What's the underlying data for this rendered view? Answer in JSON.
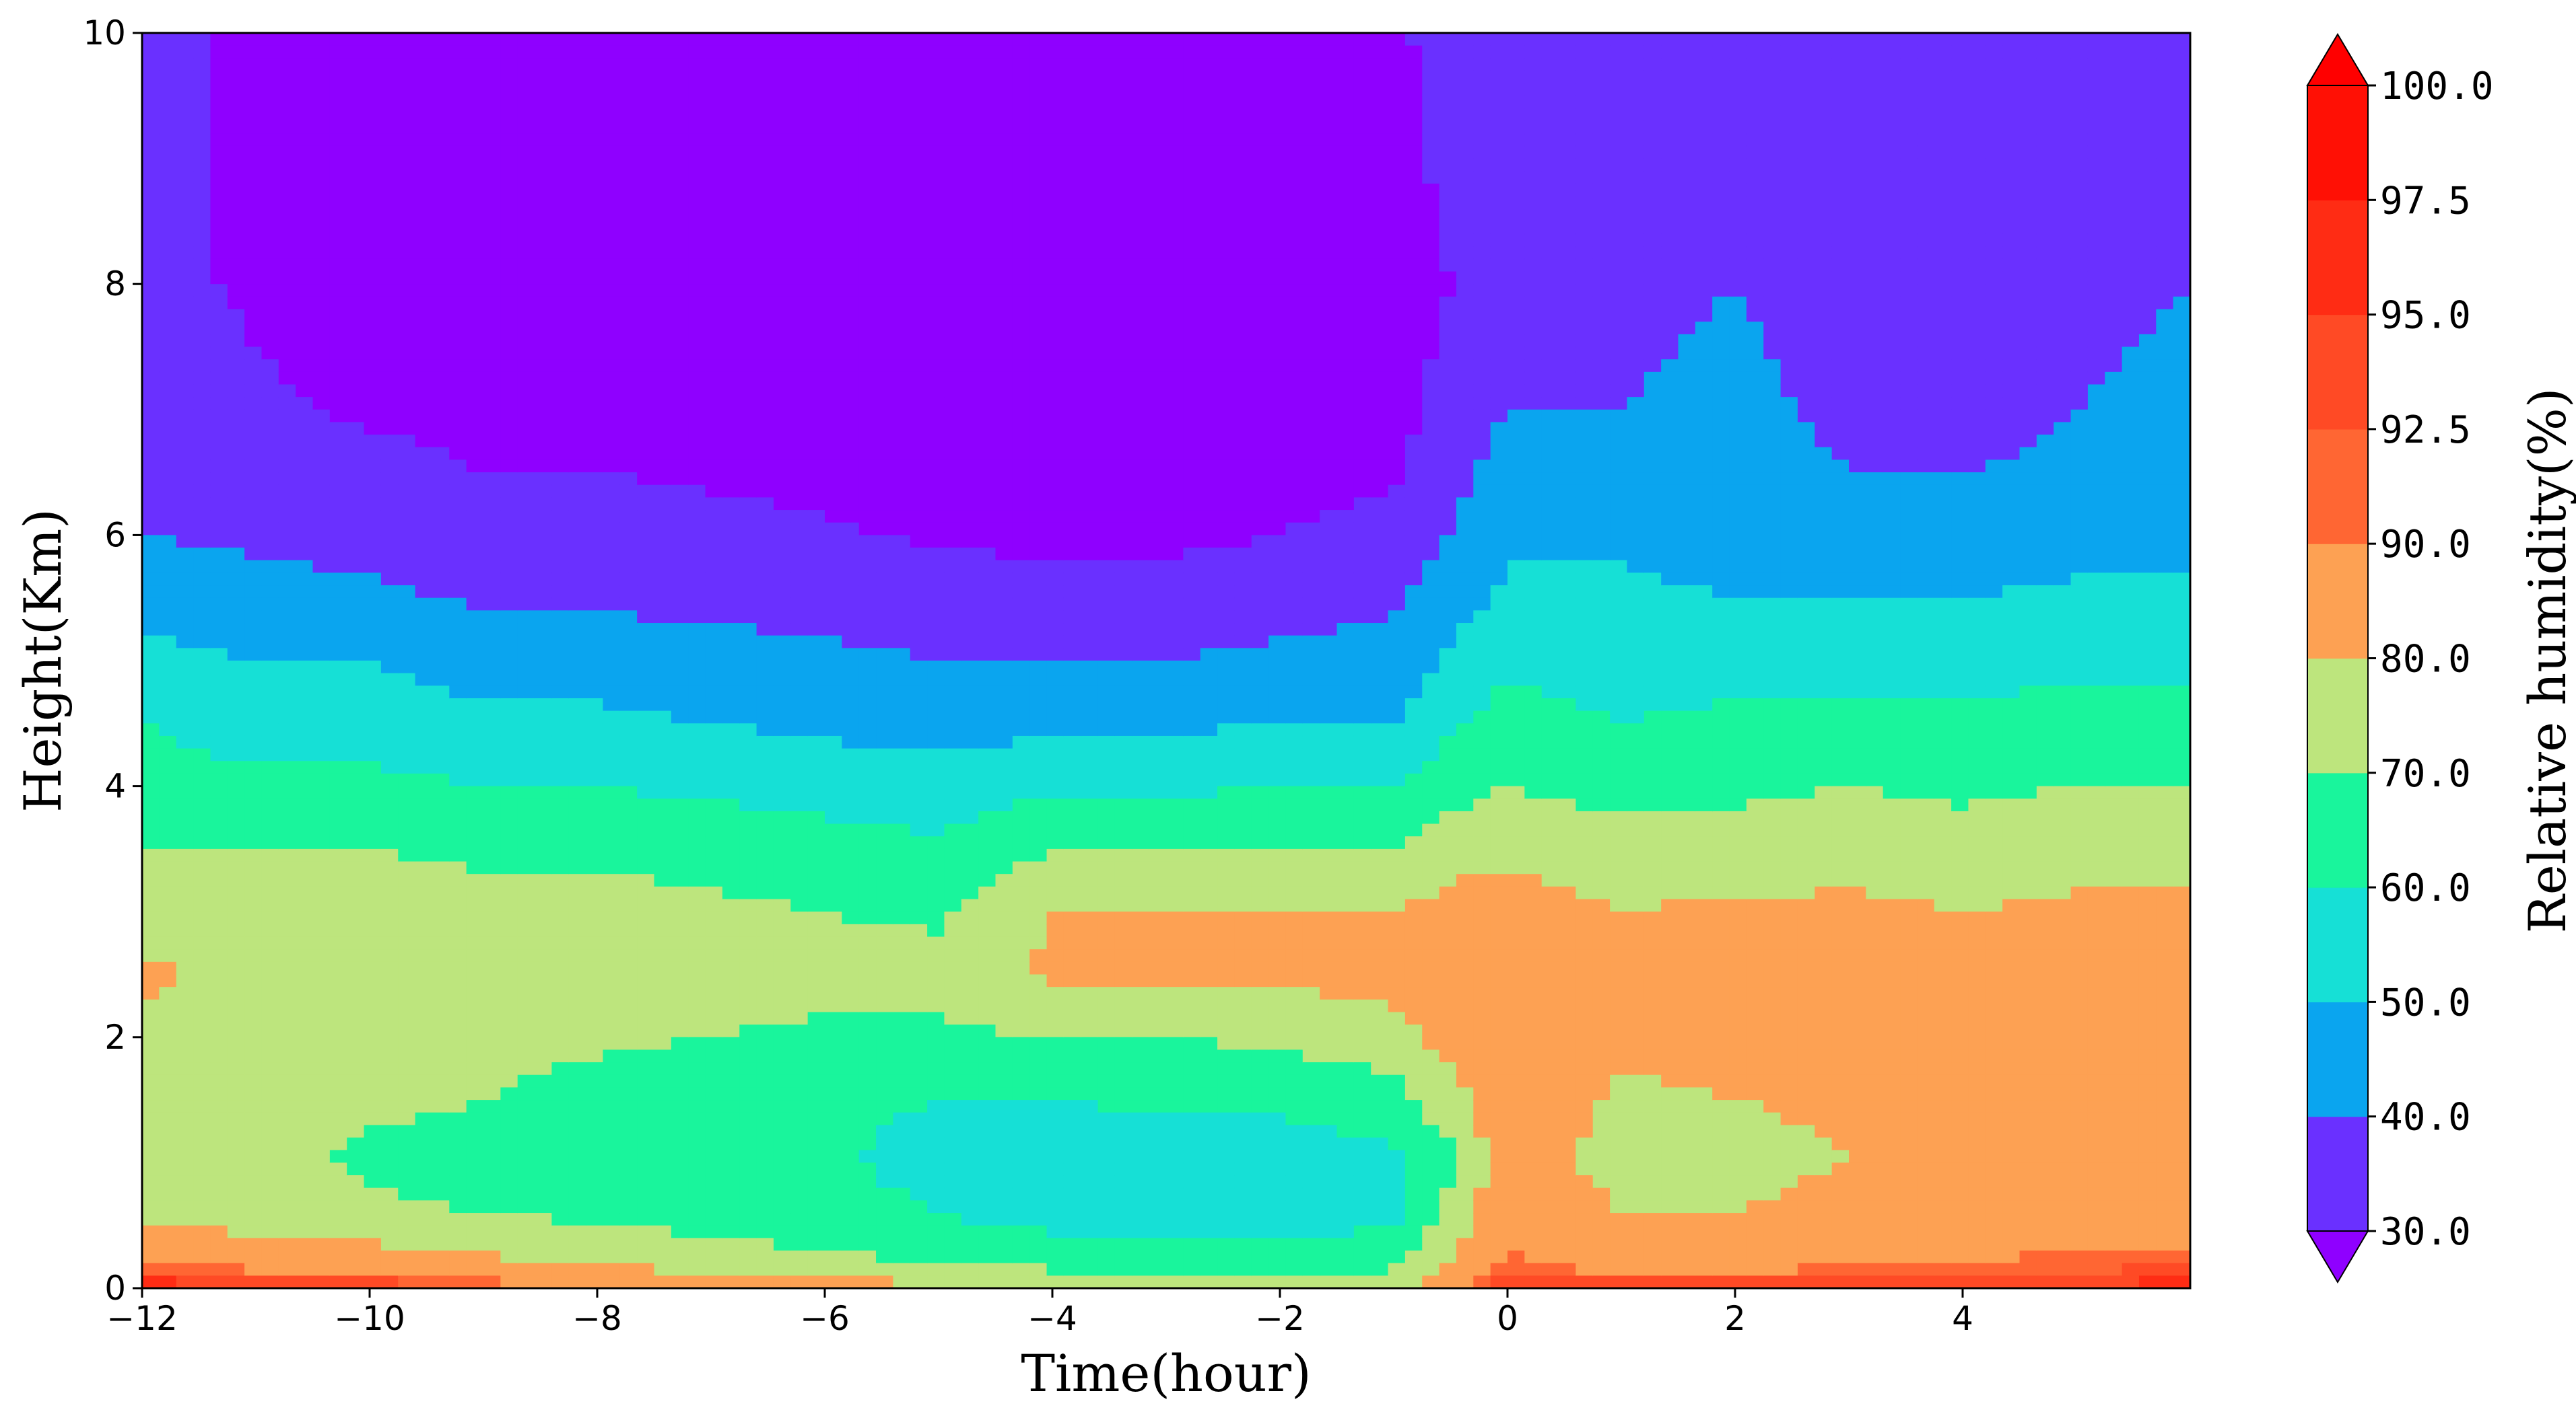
{
  "chart_data": {
    "type": "heatmap",
    "title": "",
    "xlabel": "Time(hour)",
    "ylabel": "Height(Km)",
    "colorbar_label": "Relative humidity(%)",
    "xlim": [
      -12,
      6
    ],
    "ylim": [
      0,
      10
    ],
    "x_ticks": [
      -12,
      -10,
      -8,
      -6,
      -4,
      -2,
      0,
      2,
      4
    ],
    "x_tick_labels": [
      "−12",
      "−10",
      "−8",
      "−6",
      "−4",
      "−2",
      "0",
      "2",
      "4"
    ],
    "y_ticks": [
      0,
      2,
      4,
      6,
      8,
      10
    ],
    "y_tick_labels": [
      "0",
      "2",
      "4",
      "6",
      "8",
      "10"
    ],
    "colorbar": {
      "levels": [
        30,
        40,
        50,
        60,
        70,
        80,
        90,
        92.5,
        95,
        97.5,
        100
      ],
      "labels": [
        "30.0",
        "40.0",
        "50.0",
        "60.0",
        "70.0",
        "80.0",
        "90.0",
        "92.5",
        "95.0",
        "97.5",
        "100.0"
      ],
      "colors": [
        "#6a30ff",
        "#0aa5ef",
        "#16e0d6",
        "#19f59c",
        "#bde57d",
        "#fda153",
        "#ff6633",
        "#ff4a25",
        "#ff2c14",
        "#ff1005"
      ],
      "under_color": "#8f00ff",
      "over_color": "#ff0000",
      "extend": "both"
    },
    "grid": false,
    "x_hours": [
      -12,
      -11,
      -10,
      -9,
      -8,
      -7,
      -6,
      -5,
      -4,
      -3,
      -2,
      -1,
      -0.5,
      0,
      1,
      2,
      3,
      4,
      5,
      6
    ],
    "height_km": [
      0,
      0.1,
      0.3,
      0.6,
      1,
      1.5,
      2,
      2.5,
      3,
      3.5,
      4,
      4.5,
      5,
      5.5,
      6,
      6.5,
      7,
      8,
      9,
      10
    ],
    "relative_humidity": [
      [
        97,
        94,
        85,
        78,
        75,
        75,
        78,
        82,
        76,
        70,
        64,
        60,
        53,
        46,
        40,
        36,
        34,
        32,
        33,
        34
      ],
      [
        96,
        92,
        83,
        76,
        74,
        72,
        74,
        76,
        74,
        70,
        62,
        56,
        50,
        44,
        38,
        34,
        31,
        29,
        28,
        28
      ],
      [
        95,
        91,
        82,
        72,
        68,
        72,
        74,
        76,
        74,
        70,
        62,
        56,
        50,
        42,
        36,
        32,
        29,
        27,
        27,
        27
      ],
      [
        93,
        88,
        78,
        70,
        66,
        70,
        73,
        76,
        74,
        68,
        60,
        52,
        46,
        39,
        33,
        30,
        28,
        27,
        27,
        27
      ],
      [
        90,
        84,
        76,
        68,
        64,
        66,
        72,
        76,
        74,
        68,
        60,
        52,
        46,
        38,
        33,
        30,
        28,
        27,
        27,
        27
      ],
      [
        88,
        80,
        72,
        66,
        62,
        64,
        70,
        76,
        72,
        66,
        58,
        50,
        44,
        37,
        32,
        29,
        27,
        27,
        26,
        26
      ],
      [
        86,
        78,
        70,
        64,
        62,
        62,
        68,
        74,
        70,
        64,
        56,
        48,
        42,
        36,
        31,
        28,
        27,
        26,
        26,
        26
      ],
      [
        84,
        74,
        66,
        60,
        56,
        60,
        68,
        74,
        68,
        62,
        54,
        46,
        40,
        34,
        29,
        27,
        26,
        26,
        26,
        26
      ],
      [
        82,
        72,
        64,
        56,
        54,
        60,
        70,
        82,
        80,
        70,
        58,
        48,
        40,
        33,
        28,
        26,
        26,
        26,
        26,
        26
      ],
      [
        80,
        70,
        62,
        55,
        54,
        62,
        70,
        82,
        80,
        70,
        58,
        48,
        40,
        33,
        28,
        26,
        26,
        26,
        26,
        26
      ],
      [
        80,
        70,
        62,
        55,
        54,
        62,
        72,
        82,
        80,
        70,
        60,
        50,
        42,
        36,
        30,
        27,
        26,
        26,
        26,
        26
      ],
      [
        82,
        72,
        64,
        58,
        58,
        66,
        76,
        84,
        80,
        70,
        60,
        50,
        44,
        38,
        33,
        29,
        27,
        26,
        27,
        28
      ],
      [
        88,
        82,
        80,
        74,
        68,
        76,
        84,
        86,
        84,
        76,
        66,
        58,
        52,
        46,
        40,
        36,
        33,
        30,
        32,
        34
      ],
      [
        97,
        93,
        90,
        88,
        86,
        88,
        90,
        86,
        84,
        78,
        70,
        64,
        58,
        52,
        48,
        44,
        40,
        36,
        38,
        40
      ],
      [
        96,
        90,
        84,
        80,
        76,
        78,
        82,
        84,
        80,
        74,
        66,
        60,
        56,
        52,
        48,
        44,
        40,
        38,
        36,
        36
      ],
      [
        95,
        90,
        84,
        80,
        76,
        80,
        84,
        86,
        82,
        74,
        68,
        62,
        56,
        50,
        46,
        44,
        42,
        40,
        38,
        36
      ],
      [
        95,
        92,
        88,
        84,
        80,
        82,
        84,
        86,
        82,
        76,
        70,
        64,
        56,
        50,
        44,
        40,
        38,
        36,
        34,
        32
      ],
      [
        95,
        92,
        88,
        84,
        80,
        80,
        82,
        84,
        80,
        74,
        68,
        62,
        56,
        50,
        44,
        40,
        36,
        34,
        32,
        30
      ],
      [
        96,
        93,
        90,
        86,
        82,
        82,
        84,
        86,
        82,
        76,
        70,
        64,
        58,
        52,
        46,
        42,
        40,
        38,
        36,
        36
      ],
      [
        97,
        94,
        90,
        86,
        82,
        82,
        84,
        86,
        82,
        76,
        70,
        64,
        58,
        52,
        48,
        44,
        42,
        40,
        38,
        38
      ]
    ]
  }
}
